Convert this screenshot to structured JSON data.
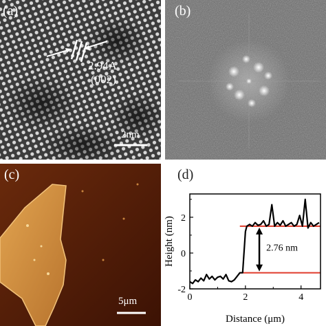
{
  "panels": {
    "a": {
      "label": "(a)",
      "spacing_label": "2.94A",
      "plane_label": "(002)",
      "scale_label": "2nm"
    },
    "b": {
      "label": "(b)"
    },
    "c": {
      "label": "(c)",
      "scale_label": "5μm"
    },
    "d": {
      "label": "(d)"
    }
  },
  "chart_data": {
    "type": "line",
    "title": "",
    "xlabel": "Distance (μm)",
    "ylabel": "Height (nm)",
    "xlim": [
      0,
      4.7
    ],
    "ylim": [
      -2,
      3.3
    ],
    "xticks": [
      "0",
      "2",
      "4"
    ],
    "yticks": [
      "-2",
      "0",
      "2"
    ],
    "annotation": "2.76 nm",
    "reference_lines": [
      {
        "y": -1.1,
        "x_start": 1.8,
        "x_end": 4.7,
        "color": "#e03a2a"
      },
      {
        "y": 1.5,
        "x_start": 1.8,
        "x_end": 4.7,
        "color": "#e03a2a"
      }
    ],
    "series": [
      {
        "color": "#000000",
        "x": [
          0.0,
          0.1,
          0.2,
          0.3,
          0.4,
          0.5,
          0.6,
          0.7,
          0.8,
          0.9,
          1.0,
          1.1,
          1.2,
          1.3,
          1.4,
          1.5,
          1.6,
          1.7,
          1.8,
          1.9,
          2.0,
          2.05,
          2.15,
          2.25,
          2.35,
          2.45,
          2.55,
          2.65,
          2.75,
          2.85,
          2.95,
          3.05,
          3.15,
          3.25,
          3.35,
          3.45,
          3.55,
          3.65,
          3.75,
          3.85,
          3.95,
          4.05,
          4.15,
          4.25,
          4.35,
          4.45,
          4.55,
          4.65
        ],
        "y": [
          -1.6,
          -1.7,
          -1.5,
          -1.6,
          -1.4,
          -1.55,
          -1.2,
          -1.45,
          -1.3,
          -1.5,
          -1.35,
          -1.3,
          -1.45,
          -1.2,
          -1.55,
          -1.6,
          -1.5,
          -1.3,
          -1.1,
          -1.1,
          1.2,
          1.5,
          1.6,
          1.5,
          1.7,
          1.55,
          1.6,
          1.8,
          1.5,
          1.6,
          2.7,
          1.5,
          1.7,
          1.55,
          1.8,
          1.5,
          1.6,
          1.7,
          1.5,
          1.6,
          2.1,
          1.5,
          3.0,
          1.4,
          1.7,
          1.5,
          1.6,
          1.7
        ]
      }
    ]
  }
}
